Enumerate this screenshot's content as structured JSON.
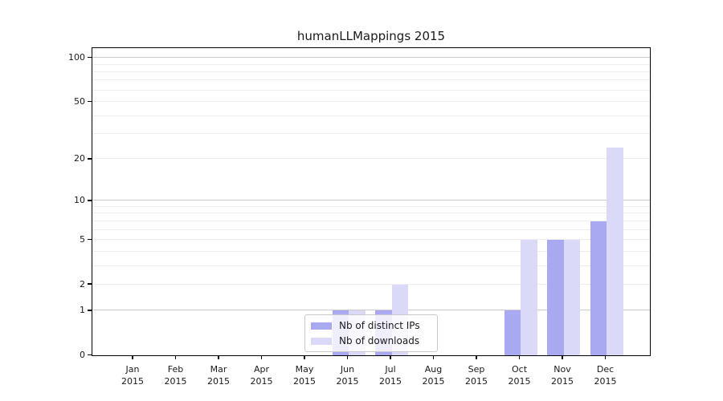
{
  "title": "humanLLMappings 2015",
  "chart_data": {
    "type": "bar",
    "title": "humanLLMappings 2015",
    "months": [
      "Jan",
      "Feb",
      "Mar",
      "Apr",
      "May",
      "Jun",
      "Jul",
      "Aug",
      "Sep",
      "Oct",
      "Nov",
      "Dec"
    ],
    "year": "2015",
    "categories": [
      "Jan 2015",
      "Feb 2015",
      "Mar 2015",
      "Apr 2015",
      "May 2015",
      "Jun 2015",
      "Jul 2015",
      "Aug 2015",
      "Sep 2015",
      "Oct 2015",
      "Nov 2015",
      "Dec 2015"
    ],
    "series": [
      {
        "name": "Nb of distinct IPs",
        "color": "#a9a9f2",
        "values": [
          0,
          0,
          0,
          0,
          0,
          1,
          1,
          0,
          0,
          1,
          5,
          7
        ]
      },
      {
        "name": "Nb of downloads",
        "color": "#dadaf8",
        "values": [
          0,
          0,
          0,
          0,
          0,
          1,
          2,
          0,
          0,
          5,
          5,
          24
        ]
      }
    ],
    "yscale": "log1p",
    "ylim": [
      0,
      115
    ],
    "y_ticks": [
      0,
      1,
      2,
      5,
      10,
      20,
      50,
      100
    ],
    "y_major_gridlines": [
      1,
      10,
      100
    ],
    "y_minor_gridlines": [
      2,
      3,
      4,
      5,
      6,
      7,
      8,
      9,
      20,
      30,
      40,
      50,
      60,
      70,
      80,
      90
    ],
    "grid": true,
    "legend_position": "lower center inside"
  },
  "colors": {
    "major_grid": "#c9c9c9",
    "minor_grid": "#ededed",
    "axis": "#000000",
    "text": "#1a1a1a",
    "legend_border": "#c9c9c9",
    "background": "#ffffff"
  }
}
